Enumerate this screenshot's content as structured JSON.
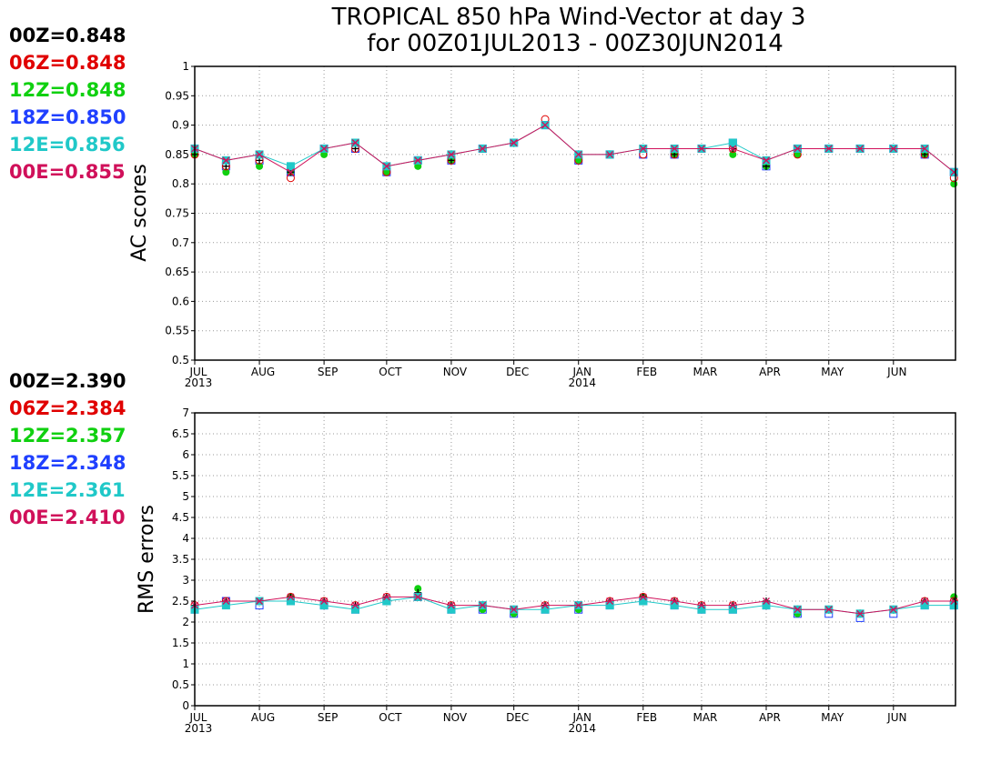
{
  "title_line1": "TROPICAL 850 hPa Wind-Vector at day 3",
  "title_line2": "for 00Z01JUL2013 - 00Z30JUN2014",
  "colors": {
    "00Z": "#000000",
    "06Z": "#e00000",
    "12Z": "#10d010",
    "18Z": "#2040ff",
    "12E": "#20c8c8",
    "00E": "#d0105a"
  },
  "ac_stats": [
    {
      "key": "00Z",
      "text": "00Z=0.848"
    },
    {
      "key": "06Z",
      "text": "06Z=0.848"
    },
    {
      "key": "12Z",
      "text": "12Z=0.848"
    },
    {
      "key": "18Z",
      "text": "18Z=0.850"
    },
    {
      "key": "12E",
      "text": "12E=0.856"
    },
    {
      "key": "00E",
      "text": "00E=0.855"
    }
  ],
  "rms_stats": [
    {
      "key": "00Z",
      "text": "00Z=2.390"
    },
    {
      "key": "06Z",
      "text": "06Z=2.384"
    },
    {
      "key": "12Z",
      "text": "12Z=2.357"
    },
    {
      "key": "18Z",
      "text": "18Z=2.348"
    },
    {
      "key": "12E",
      "text": "12E=2.361"
    },
    {
      "key": "00E",
      "text": "00E=2.410"
    }
  ],
  "chart_data": [
    {
      "type": "scatter",
      "ylabel": "AC scores",
      "ylim": [
        0.5,
        1
      ],
      "yticks": [
        "0.5",
        "0.55",
        "0.6",
        "0.65",
        "0.7",
        "0.75",
        "0.8",
        "0.85",
        "0.9",
        "0.95",
        "1"
      ],
      "x_month_labels": [
        "JUL",
        "AUG",
        "SEP",
        "OCT",
        "NOV",
        "DEC",
        "JAN",
        "FEB",
        "MAR",
        "APR",
        "MAY",
        "JUN"
      ],
      "x_year_labels": [
        {
          "month": "JUL",
          "text": "2013"
        },
        {
          "month": "JAN",
          "text": "2014"
        }
      ],
      "grid": true,
      "x_dates": [
        "2013-07-01",
        "2013-07-16",
        "2013-08-01",
        "2013-08-16",
        "2013-09-01",
        "2013-09-16",
        "2013-10-01",
        "2013-10-16",
        "2013-11-01",
        "2013-11-16",
        "2013-12-01",
        "2013-12-16",
        "2014-01-01",
        "2014-01-16",
        "2014-02-01",
        "2014-02-16",
        "2014-03-01",
        "2014-03-16",
        "2014-04-01",
        "2014-04-16",
        "2014-05-01",
        "2014-05-16",
        "2014-06-01",
        "2014-06-16",
        "2014-06-30"
      ],
      "series": [
        {
          "name": "00Z",
          "values": [
            0.85,
            0.83,
            0.84,
            0.82,
            0.86,
            0.86,
            0.83,
            0.84,
            0.84,
            0.86,
            0.87,
            0.9,
            0.85,
            0.85,
            0.86,
            0.85,
            0.86,
            0.86,
            0.83,
            0.86,
            0.86,
            0.86,
            0.86,
            0.85,
            0.82
          ]
        },
        {
          "name": "06Z",
          "values": [
            0.85,
            0.83,
            0.84,
            0.81,
            0.86,
            0.86,
            0.82,
            0.84,
            0.84,
            0.86,
            0.87,
            0.91,
            0.84,
            0.85,
            0.85,
            0.85,
            0.86,
            0.86,
            0.84,
            0.85,
            0.86,
            0.86,
            0.86,
            0.85,
            0.81
          ]
        },
        {
          "name": "12Z",
          "values": [
            0.85,
            0.82,
            0.83,
            0.82,
            0.85,
            0.87,
            0.82,
            0.83,
            0.84,
            0.86,
            0.87,
            0.9,
            0.84,
            0.85,
            0.86,
            0.85,
            0.86,
            0.85,
            0.83,
            0.85,
            0.86,
            0.86,
            0.86,
            0.85,
            0.8
          ]
        },
        {
          "name": "18Z",
          "values": [
            0.86,
            0.83,
            0.84,
            0.82,
            0.86,
            0.86,
            0.82,
            0.84,
            0.84,
            0.86,
            0.87,
            0.9,
            0.84,
            0.85,
            0.85,
            0.85,
            0.86,
            0.87,
            0.83,
            0.86,
            0.86,
            0.86,
            0.86,
            0.85,
            0.82
          ]
        },
        {
          "name": "12E",
          "values": [
            0.86,
            0.84,
            0.85,
            0.83,
            0.86,
            0.87,
            0.83,
            0.84,
            0.85,
            0.86,
            0.87,
            0.9,
            0.85,
            0.85,
            0.86,
            0.86,
            0.86,
            0.87,
            0.84,
            0.86,
            0.86,
            0.86,
            0.86,
            0.86,
            0.82
          ]
        },
        {
          "name": "00E",
          "values": [
            0.86,
            0.84,
            0.85,
            0.82,
            0.86,
            0.87,
            0.83,
            0.84,
            0.85,
            0.86,
            0.87,
            0.9,
            0.85,
            0.85,
            0.86,
            0.86,
            0.86,
            0.86,
            0.84,
            0.86,
            0.86,
            0.86,
            0.86,
            0.86,
            0.82
          ]
        }
      ]
    },
    {
      "type": "scatter",
      "ylabel": "RMS errors",
      "ylim": [
        0,
        7
      ],
      "yticks": [
        "0",
        "0.5",
        "1",
        "1.5",
        "2",
        "2.5",
        "3",
        "3.5",
        "4",
        "4.5",
        "5",
        "5.5",
        "6",
        "6.5",
        "7"
      ],
      "x_month_labels": [
        "JUL",
        "AUG",
        "SEP",
        "OCT",
        "NOV",
        "DEC",
        "JAN",
        "FEB",
        "MAR",
        "APR",
        "MAY",
        "JUN"
      ],
      "x_year_labels": [
        {
          "month": "JUL",
          "text": "2013"
        },
        {
          "month": "JAN",
          "text": "2014"
        }
      ],
      "grid": true,
      "x_dates": [
        "2013-07-01",
        "2013-07-16",
        "2013-08-01",
        "2013-08-16",
        "2013-09-01",
        "2013-09-16",
        "2013-10-01",
        "2013-10-16",
        "2013-11-01",
        "2013-11-16",
        "2013-12-01",
        "2013-12-16",
        "2014-01-01",
        "2014-01-16",
        "2014-02-01",
        "2014-02-16",
        "2014-03-01",
        "2014-03-16",
        "2014-04-01",
        "2014-04-16",
        "2014-05-01",
        "2014-05-16",
        "2014-06-01",
        "2014-06-16",
        "2014-06-30"
      ],
      "series": [
        {
          "name": "00Z",
          "values": [
            2.4,
            2.5,
            2.5,
            2.6,
            2.5,
            2.4,
            2.6,
            2.7,
            2.4,
            2.4,
            2.3,
            2.4,
            2.4,
            2.5,
            2.6,
            2.5,
            2.4,
            2.4,
            2.5,
            2.3,
            2.3,
            2.2,
            2.3,
            2.5,
            2.5
          ]
        },
        {
          "name": "06Z",
          "values": [
            2.4,
            2.5,
            2.5,
            2.6,
            2.5,
            2.4,
            2.6,
            2.6,
            2.4,
            2.4,
            2.3,
            2.4,
            2.4,
            2.5,
            2.6,
            2.5,
            2.4,
            2.4,
            2.4,
            2.3,
            2.3,
            2.2,
            2.3,
            2.5,
            2.5
          ]
        },
        {
          "name": "12Z",
          "values": [
            2.3,
            2.4,
            2.5,
            2.6,
            2.4,
            2.3,
            2.5,
            2.8,
            2.3,
            2.3,
            2.2,
            2.3,
            2.3,
            2.4,
            2.6,
            2.4,
            2.3,
            2.3,
            2.4,
            2.2,
            2.3,
            2.2,
            2.3,
            2.4,
            2.6
          ]
        },
        {
          "name": "18Z",
          "values": [
            2.3,
            2.5,
            2.4,
            2.5,
            2.4,
            2.3,
            2.5,
            2.6,
            2.3,
            2.3,
            2.2,
            2.3,
            2.3,
            2.4,
            2.5,
            2.4,
            2.3,
            2.3,
            2.4,
            2.2,
            2.2,
            2.1,
            2.2,
            2.4,
            2.4
          ]
        },
        {
          "name": "12E",
          "values": [
            2.3,
            2.4,
            2.5,
            2.5,
            2.4,
            2.3,
            2.5,
            2.6,
            2.3,
            2.4,
            2.3,
            2.3,
            2.4,
            2.4,
            2.5,
            2.4,
            2.3,
            2.3,
            2.4,
            2.3,
            2.3,
            2.2,
            2.3,
            2.4,
            2.4
          ]
        },
        {
          "name": "00E",
          "values": [
            2.4,
            2.5,
            2.5,
            2.6,
            2.5,
            2.4,
            2.6,
            2.6,
            2.4,
            2.4,
            2.3,
            2.4,
            2.4,
            2.5,
            2.6,
            2.5,
            2.4,
            2.4,
            2.5,
            2.3,
            2.3,
            2.2,
            2.3,
            2.5,
            2.5
          ]
        }
      ]
    }
  ]
}
